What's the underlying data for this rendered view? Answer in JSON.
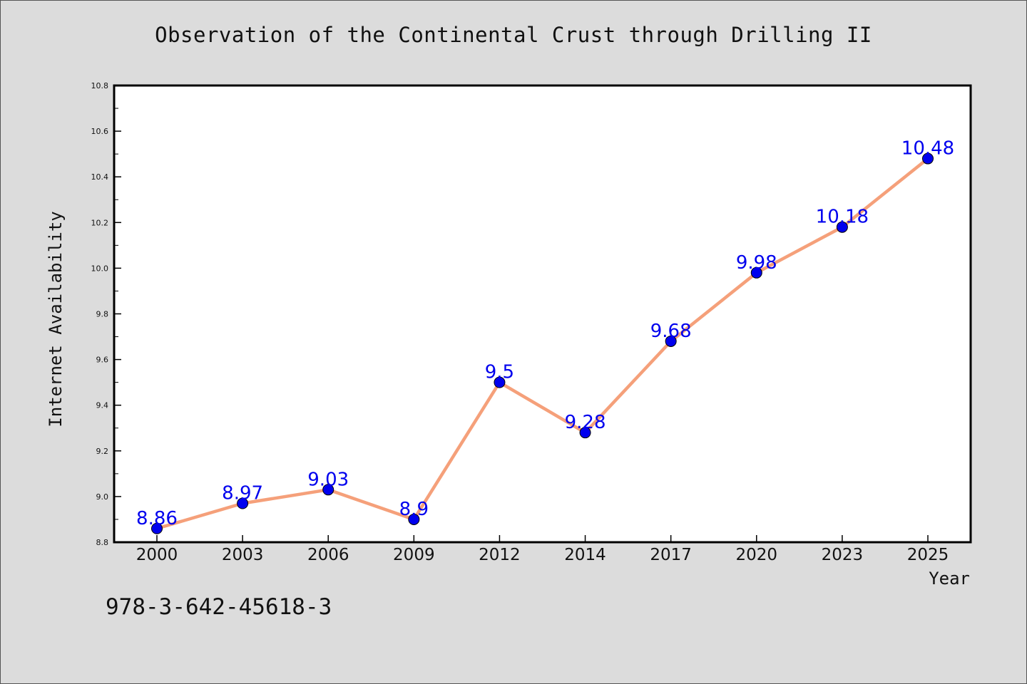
{
  "page": {
    "title": "Observation of the Continental Crust through Drilling II",
    "footer_code": "978-3-642-45618-3"
  },
  "chart_data": {
    "type": "line",
    "title": "Observation of the Continental Crust through Drilling II",
    "xlabel": "Year",
    "ylabel": "Internet Availability",
    "categories": [
      "2000",
      "2003",
      "2006",
      "2009",
      "2012",
      "2014",
      "2017",
      "2020",
      "2023",
      "2025"
    ],
    "series": [
      {
        "values": [
          8.86,
          8.97,
          9.03,
          8.9,
          9.5,
          9.28,
          9.68,
          9.98,
          10.18,
          10.48
        ],
        "data_labels": [
          "8.86",
          "8.97",
          "9.03",
          "8.9",
          "9.5",
          "9.28",
          "9.68",
          "9.98",
          "10.18",
          "10.48"
        ],
        "line_color": "#f5a07a",
        "marker_color": "#0000ee",
        "label_color": "#0000ee"
      }
    ],
    "ylim": [
      8.8,
      10.8
    ],
    "yticks": [
      8.8,
      9.0,
      9.2,
      9.4,
      9.6,
      9.8,
      10.0,
      10.2,
      10.4,
      10.6,
      10.8
    ],
    "ytick_labels": [
      "8.8",
      "9.0",
      "9.2",
      "9.4",
      "9.6",
      "9.8",
      "10.0",
      "10.2",
      "10.4",
      "10.6",
      "10.8"
    ],
    "grid": false,
    "legend": "none",
    "background_color": "#dcdcdc",
    "plot_background_color": "#ffffff"
  }
}
